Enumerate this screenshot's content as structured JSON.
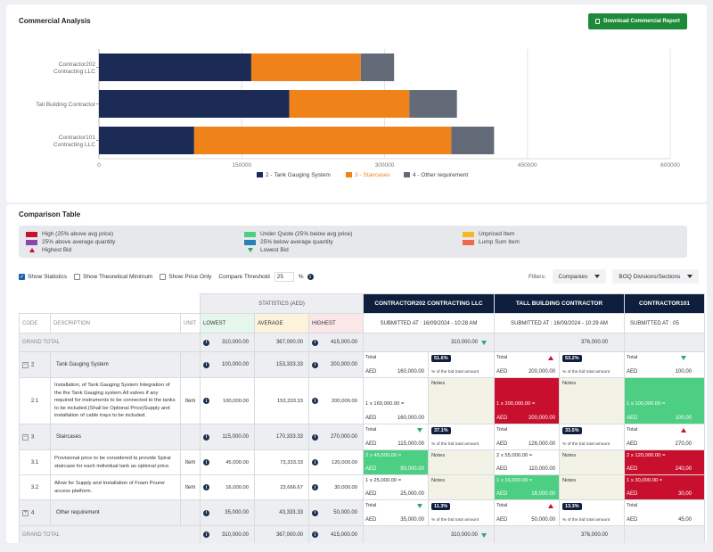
{
  "header": {
    "title": "Commercial Analysis",
    "download_label": "Download Commercial Report"
  },
  "chart_data": {
    "type": "bar",
    "orientation": "horizontal",
    "stacked": true,
    "categories": [
      "Contractor202 Contracting LLC",
      "Tall Building Contractor",
      "Contractor101 Contracting LLC"
    ],
    "category_lines": [
      [
        "Contractor202",
        "Contracting LLC"
      ],
      [
        "Tall Building Contractor"
      ],
      [
        "Contractor101",
        "Contracting LLC"
      ]
    ],
    "series": [
      {
        "name": "2 - Tank Gauging System",
        "color": "#1c2b55",
        "values": [
          160000,
          200000,
          100000
        ]
      },
      {
        "name": "3 - Staircases",
        "color": "#ef8218",
        "values": [
          115000,
          126000,
          270000
        ]
      },
      {
        "name": "4 - Other requirement",
        "color": "#636b78",
        "values": [
          35000,
          50000,
          45000
        ]
      }
    ],
    "xlim": [
      0,
      600000
    ],
    "xticks": [
      "0",
      "150000",
      "300000",
      "450000",
      "600000"
    ],
    "xlabel": "",
    "ylabel": "",
    "title": "",
    "grid": true,
    "legend_position": "bottom"
  },
  "comparison": {
    "title": "Comparison Table",
    "legend": [
      {
        "label": "High (25% above avg price)",
        "color": "#c8102e"
      },
      {
        "label": "25% above average quantity",
        "color": "#8e44ad"
      },
      {
        "label": "Highest Bid",
        "icon": "triangle-up-icon"
      },
      {
        "label": "Under Quote (25% below avg price)",
        "color": "#4ccf83"
      },
      {
        "label": "25% below average quantity",
        "color": "#2980b9"
      },
      {
        "label": "Lowest Bid",
        "icon": "triangle-down-icon"
      },
      {
        "label": "Unpriced Item",
        "color": "#f5b820"
      },
      {
        "label": "Lump Sum Item",
        "color": "#f06a4a"
      }
    ],
    "controls": {
      "show_statistics": "Show Statistics",
      "show_min": "Show Theoretical Minimum",
      "show_price_only": "Show Price Only",
      "threshold_label": "Compare Threshold",
      "threshold_value": "25",
      "threshold_unit": "%",
      "filters_label": "Filters:",
      "companies": "Companies",
      "boq": "BOQ Divisions/Sections"
    },
    "table": {
      "stats_header": "STATISTICS (AED)",
      "col_code": "CODE",
      "col_desc": "DESCRIPTION",
      "col_unit": "UNIT",
      "col_lowest": "LOWEST",
      "col_average": "AVERAGE",
      "col_highest": "HIGHEST",
      "contractors": [
        {
          "name": "CONTRACTOR202 CONTRACTING LLC",
          "submitted": "SUBMITTED AT : 16/09/2024 - 10:28 AM"
        },
        {
          "name": "TALL BUILDING CONTRACTOR",
          "submitted": "SUBMITTED AT : 16/09/2024 - 10:29 AM"
        },
        {
          "name": "CONTRACTOR101",
          "submitted": "SUBMITTED AT : 05"
        }
      ],
      "grand_total": "GRAND TOTAL",
      "gt_lowest": "310,000.00",
      "gt_average": "367,000.00",
      "gt_highest": "415,000.00",
      "gt_c1": "310,000.00",
      "gt_c2": "376,000.00",
      "total": "Total",
      "aed": "AED",
      "notes": "Notes",
      "pct_label": "% of the bid total amount",
      "rows": {
        "r2": {
          "code": "2",
          "desc": "Tank Gauging System",
          "lowest": "100,000.00",
          "average": "153,333.33",
          "highest": "200,000.00",
          "c1_amt": "160,000.00",
          "c1_pct": "51.6%",
          "c2_amt": "200,000.00",
          "c2_pct": "53.2%",
          "c3_amt": "100,00"
        },
        "r21": {
          "code": "2.1",
          "desc": "Installation, of Tank Gauging System Integration of the the Tank Gauging system.All valves if any required for instruments to be connected to the tanks to be included.(Shall be Optional Price)Supply and installation of cable trays to be included.",
          "unit": "Item",
          "lowest": "100,000.00",
          "average": "153,333.33",
          "highest": "200,000.00",
          "c1_qty": "1 x 160,000.00 =",
          "c1_amt": "160,000.00",
          "c2_qty": "1 x 200,000.00 =",
          "c2_amt": "200,000.00",
          "c3_qty": "1 x 100,000.00 =",
          "c3_amt": "100,00"
        },
        "r3": {
          "code": "3",
          "desc": "Staircases",
          "lowest": "115,000.00",
          "average": "170,333.33",
          "highest": "270,000.00",
          "c1_amt": "115,000.00",
          "c1_pct": "37.1%",
          "c2_amt": "126,000.00",
          "c2_pct": "33.5%",
          "c3_amt": "270,00"
        },
        "r31": {
          "code": "3.1",
          "desc": "Provisional price to be considered to provide Spiral staircase for each individual tank as optional price.",
          "unit": "Item",
          "lowest": "45,000.00",
          "average": "73,333.33",
          "highest": "120,000.00",
          "c1_qty": "2 x 45,000.00 =",
          "c1_amt": "90,000.00",
          "c2_qty": "2 x 55,000.00 =",
          "c2_amt": "110,000.00",
          "c3_qty": "2 x 120,000.00 =",
          "c3_amt": "240,00"
        },
        "r32": {
          "code": "3.2",
          "desc": "Allow for Supply and Installation of Foam Pourer access platform.",
          "unit": "Item",
          "lowest": "16,000.00",
          "average": "23,666.67",
          "highest": "30,000.00",
          "c1_qty": "1 x 25,000.00 =",
          "c1_amt": "25,000.00",
          "c2_qty": "1 x 16,000.00 =",
          "c2_amt": "16,000.00",
          "c3_qty": "1 x 30,000.00 =",
          "c3_amt": "30,00"
        },
        "r4": {
          "code": "4",
          "desc": "Other requirement",
          "lowest": "35,000.00",
          "average": "43,333.33",
          "highest": "50,000.00",
          "c1_amt": "35,000.00",
          "c1_pct": "11.3%",
          "c2_amt": "50,000.00",
          "c2_pct": "13.3%",
          "c3_amt": "45,00"
        }
      },
      "expand_minus": "−",
      "expand_plus": "+"
    }
  }
}
